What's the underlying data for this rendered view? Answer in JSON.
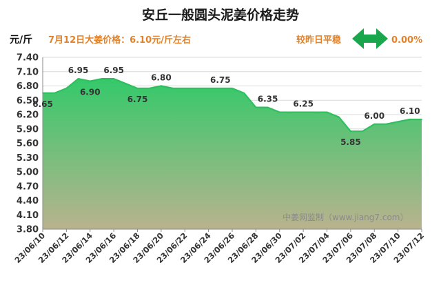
{
  "header": {
    "title": "安丘一般圆头泥姜价格走势",
    "unit": "元/斤",
    "price_note": "7月12日大姜价格：6.10元/斤左右",
    "compare_label": "较昨日平稳",
    "compare_value": "0.00%",
    "watermark": "中姜网监制（www.jiang7.com）"
  },
  "colors": {
    "line": "#2fbf5f",
    "area_top": "#34c96a",
    "area_bottom": "#b9b38e",
    "arrow": "#1aa64a",
    "accent": "#e0822c"
  },
  "chart_data": {
    "type": "area",
    "title": "安丘一般圆头泥姜价格走势",
    "ylabel": "元/斤",
    "xlabel": "",
    "ylim": [
      3.8,
      7.4
    ],
    "yticks": [
      "3.80",
      "4.10",
      "4.40",
      "4.70",
      "5.00",
      "5.30",
      "5.60",
      "5.90",
      "6.20",
      "6.50",
      "6.80",
      "7.10",
      "7.40"
    ],
    "grid": true,
    "x": [
      "23/06/10",
      "23/06/11",
      "23/06/12",
      "23/06/13",
      "23/06/14",
      "23/06/15",
      "23/06/16",
      "23/06/17",
      "23/06/18",
      "23/06/19",
      "23/06/20",
      "23/06/21",
      "23/06/22",
      "23/06/23",
      "23/06/24",
      "23/06/25",
      "23/06/26",
      "23/06/27",
      "23/06/28",
      "23/06/29",
      "23/06/30",
      "23/07/01",
      "23/07/02",
      "23/07/03",
      "23/07/04",
      "23/07/05",
      "23/07/06",
      "23/07/07",
      "23/07/08",
      "23/07/09",
      "23/07/10",
      "23/07/11",
      "23/07/12"
    ],
    "xtick_labels": [
      "23/06/10",
      "23/06/12",
      "23/06/14",
      "23/06/16",
      "23/06/18",
      "23/06/20",
      "23/06/22",
      "23/06/24",
      "23/06/26",
      "23/06/28",
      "23/06/30",
      "23/07/02",
      "23/07/04",
      "23/07/06",
      "23/07/08",
      "23/07/10",
      "23/07/12"
    ],
    "values": [
      6.65,
      6.65,
      6.75,
      6.95,
      6.9,
      6.95,
      6.95,
      6.85,
      6.75,
      6.75,
      6.8,
      6.75,
      6.75,
      6.75,
      6.75,
      6.75,
      6.75,
      6.65,
      6.35,
      6.35,
      6.25,
      6.25,
      6.25,
      6.25,
      6.25,
      6.15,
      5.85,
      5.85,
      6.0,
      6.0,
      6.05,
      6.1,
      6.1
    ],
    "data_labels": [
      {
        "x": "23/06/10",
        "value": "6.65",
        "pos": "below"
      },
      {
        "x": "23/06/13",
        "value": "6.95",
        "pos": "above"
      },
      {
        "x": "23/06/14",
        "value": "6.90",
        "pos": "below"
      },
      {
        "x": "23/06/16",
        "value": "6.95",
        "pos": "above"
      },
      {
        "x": "23/06/18",
        "value": "6.75",
        "pos": "below"
      },
      {
        "x": "23/06/20",
        "value": "6.80",
        "pos": "above"
      },
      {
        "x": "23/06/25",
        "value": "6.75",
        "pos": "above"
      },
      {
        "x": "23/06/29",
        "value": "6.35",
        "pos": "above"
      },
      {
        "x": "23/07/02",
        "value": "6.25",
        "pos": "above"
      },
      {
        "x": "23/07/06",
        "value": "5.85",
        "pos": "below"
      },
      {
        "x": "23/07/08",
        "value": "6.00",
        "pos": "above"
      },
      {
        "x": "23/07/11",
        "value": "6.10",
        "pos": "above"
      }
    ]
  }
}
